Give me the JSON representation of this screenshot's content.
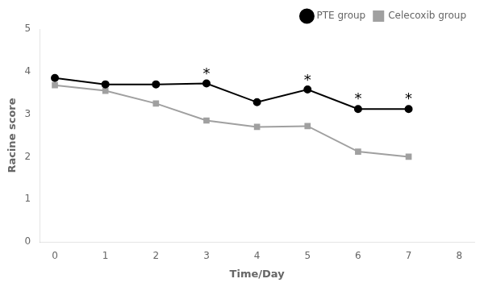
{
  "chart_data": {
    "type": "line",
    "x": [
      0,
      1,
      2,
      3,
      4,
      5,
      6,
      7
    ],
    "series": [
      {
        "name": "PTE group",
        "color": "#000000",
        "marker": "circle",
        "values": [
          3.85,
          3.7,
          3.7,
          3.72,
          3.28,
          3.58,
          3.12,
          3.12
        ]
      },
      {
        "name": "Celecoxib group",
        "color": "#a0a0a0",
        "marker": "square",
        "values": [
          3.68,
          3.55,
          3.25,
          2.85,
          2.7,
          2.72,
          2.12,
          2.0
        ]
      }
    ],
    "xlabel": "Time/Day",
    "ylabel": "Racine score",
    "xlim": [
      -0.3,
      8.3
    ],
    "ylim": [
      0,
      5
    ],
    "xticks": [
      0,
      1,
      2,
      3,
      4,
      5,
      6,
      7,
      8
    ],
    "yticks": [
      0,
      1,
      2,
      3,
      4,
      5
    ],
    "grid": false,
    "legend": "upper right",
    "annotations": [
      {
        "x": 3,
        "y": 3.87,
        "text": "*"
      },
      {
        "x": 5,
        "y": 3.72,
        "text": "*"
      },
      {
        "x": 6,
        "y": 3.28,
        "text": "*"
      },
      {
        "x": 7,
        "y": 3.28,
        "text": "*"
      }
    ]
  }
}
